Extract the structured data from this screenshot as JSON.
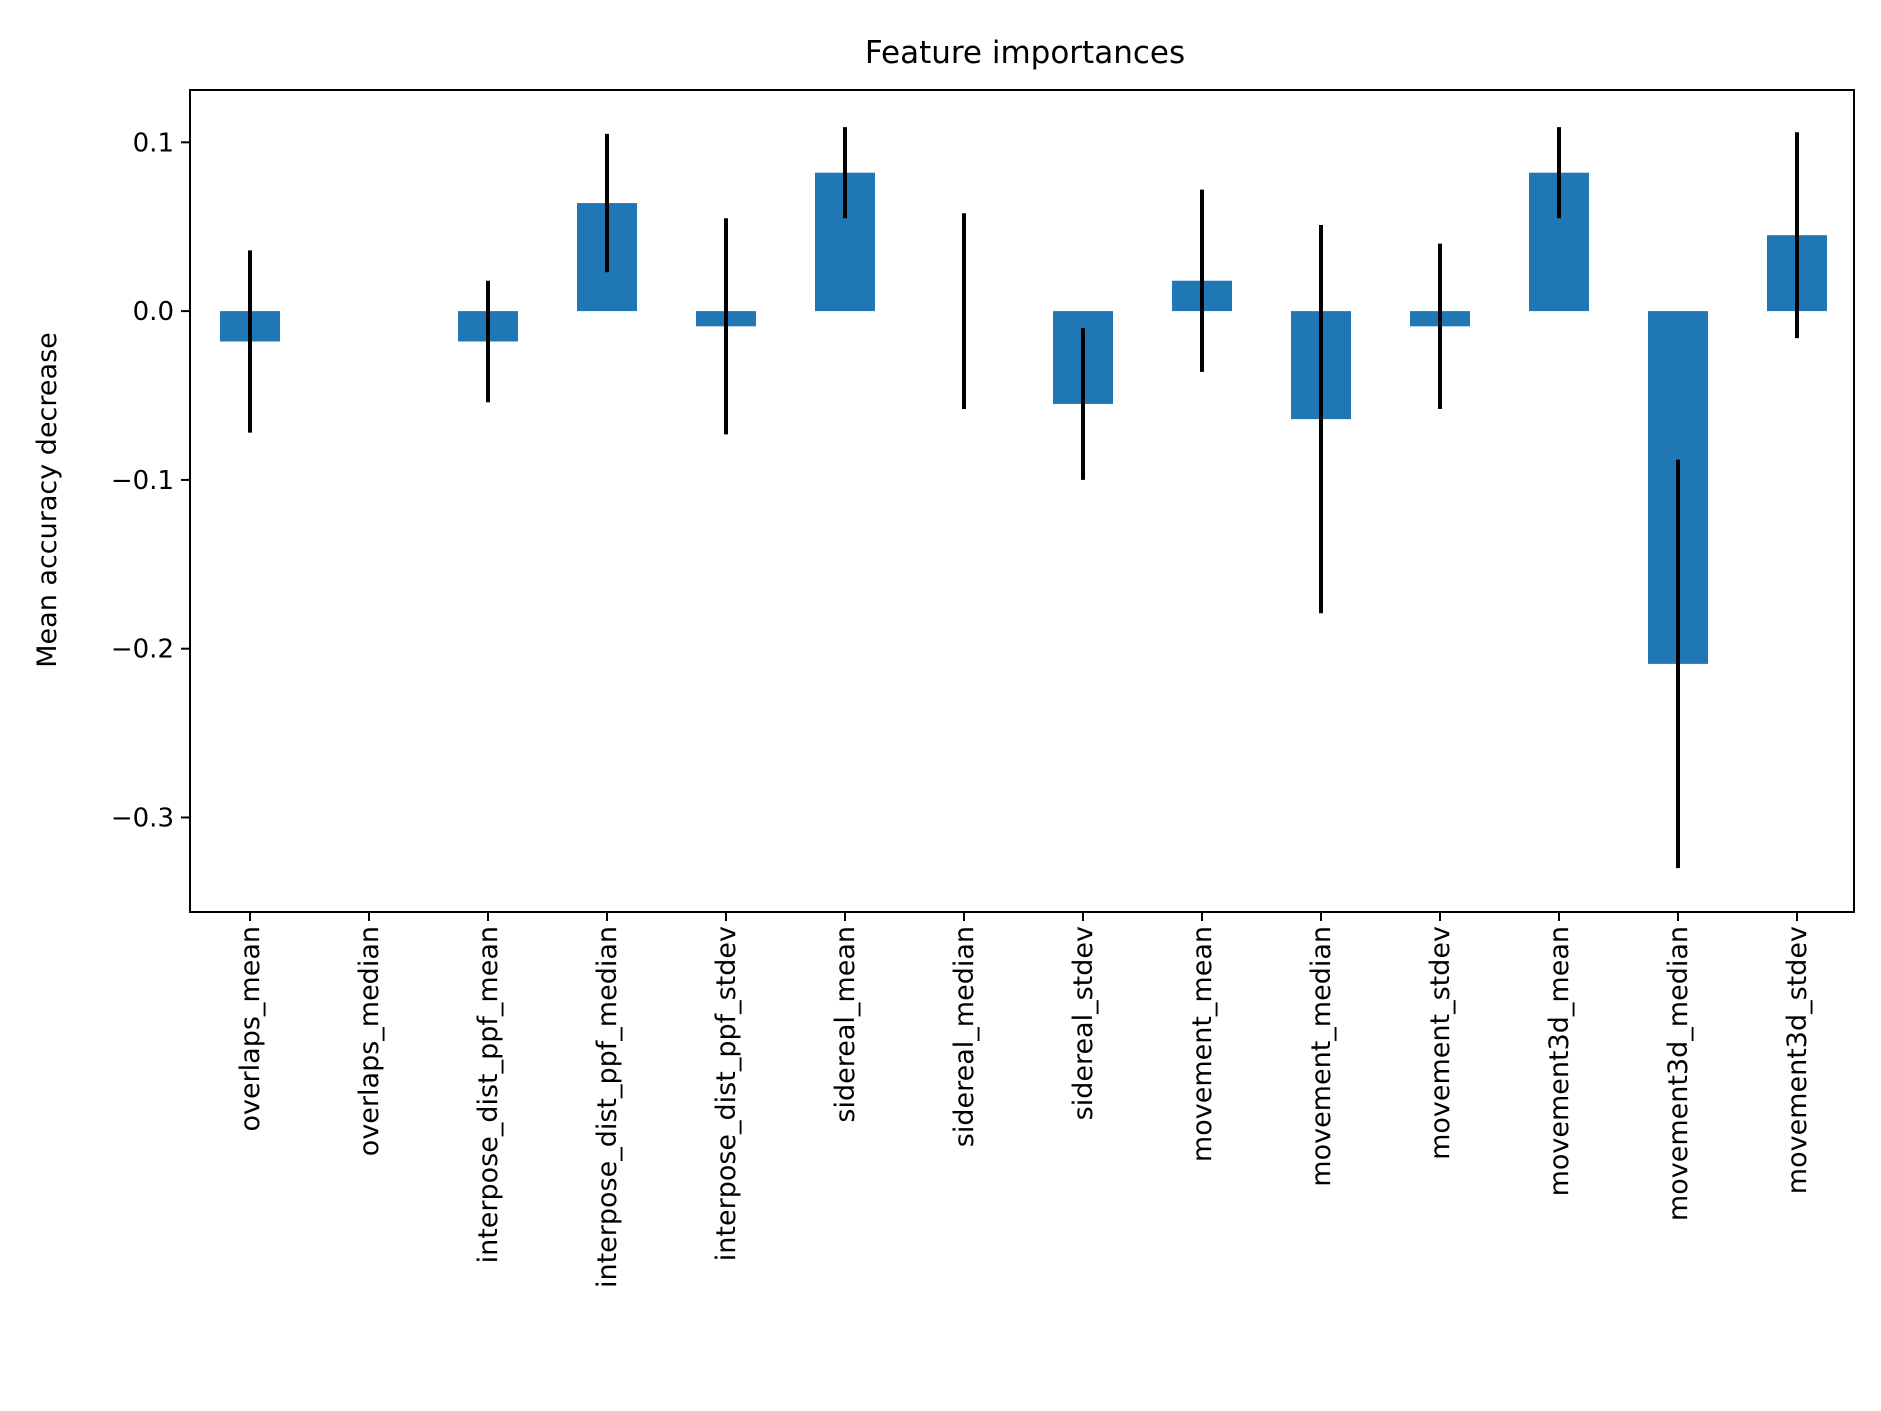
{
  "chart_data": {
    "type": "bar",
    "title": "Feature importances",
    "xlabel": "",
    "ylabel": "Mean accuracy decrease",
    "ylim": [
      -0.356,
      0.131
    ],
    "yticks": [
      0.1,
      0.0,
      -0.1,
      -0.2,
      -0.3
    ],
    "ytick_labels": [
      "0.1",
      "0.0",
      "−0.1",
      "−0.2",
      "−0.3"
    ],
    "grid": false,
    "legend": "none",
    "bar_color": "#1f77b4",
    "error_bar_color": "#000000",
    "categories": [
      "overlaps_mean",
      "overlaps_median",
      "interpose_dist_ppf_mean",
      "interpose_dist_ppf_median",
      "interpose_dist_ppf_stdev",
      "sidereal_mean",
      "sidereal_median",
      "sidereal_stdev",
      "movement_mean",
      "movement_median",
      "movement_stdev",
      "movement3d_mean",
      "movement3d_median",
      "movement3d_stdev"
    ],
    "values": [
      -0.018,
      0.0,
      -0.018,
      0.064,
      -0.009,
      0.082,
      0.0,
      -0.055,
      0.018,
      -0.064,
      -0.009,
      0.082,
      -0.209,
      0.045
    ],
    "errors": [
      0.054,
      0.0,
      0.036,
      0.041,
      0.064,
      0.027,
      0.058,
      0.045,
      0.054,
      0.115,
      0.049,
      0.027,
      0.121,
      0.061
    ]
  }
}
